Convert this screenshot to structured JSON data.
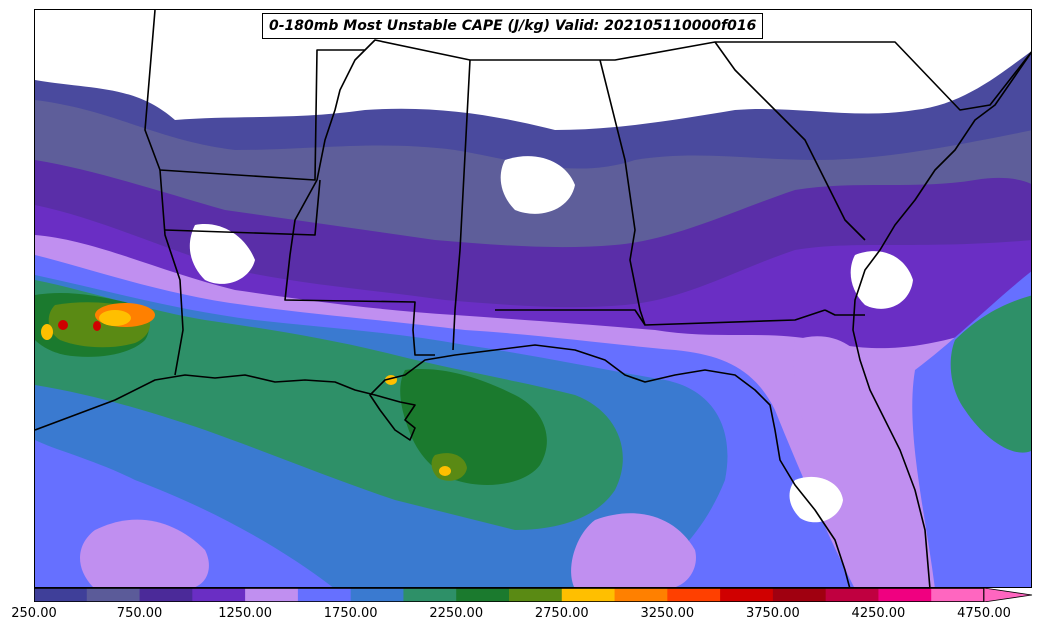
{
  "title": "0-180mb Most Unstable CAPE (J/kg) Valid: 202105110000f016",
  "colorbar": {
    "colors": [
      "#3f3f99",
      "#5b5b99",
      "#4b2a99",
      "#6a2ec4",
      "#c08ff0",
      "#6670ff",
      "#3a7ad0",
      "#2e9068",
      "#1b7a2e",
      "#5a8a14",
      "#ffbf00",
      "#ff8000",
      "#ff4000",
      "#d00000",
      "#a00010",
      "#c00040",
      "#f00080",
      "#ff66c0"
    ],
    "tick_labels": [
      "250.00",
      "750.00",
      "1250.00",
      "1750.00",
      "2250.00",
      "2750.00",
      "3250.00",
      "3750.00",
      "4250.00",
      "4750.00"
    ],
    "min": 250,
    "max": 4750,
    "extend": "max"
  },
  "icons": {
    "colorbar_arrow": "triangle-right-icon"
  }
}
